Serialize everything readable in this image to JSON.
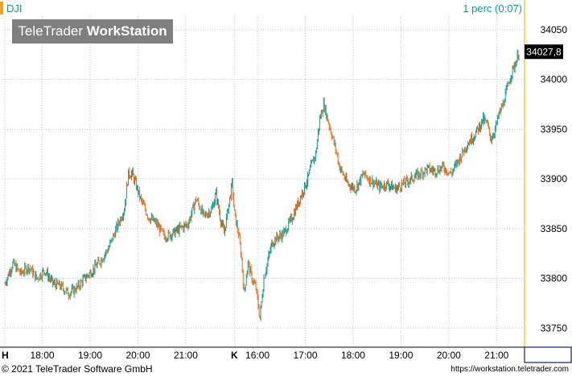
{
  "header": {
    "symbol": "DJI",
    "interval": "1 perc (0:07)"
  },
  "watermark": {
    "brand": "TeleTrader",
    "product": "WorkStation"
  },
  "price_marker": {
    "label": "34027,8"
  },
  "footer": {
    "copyright": "© 2021 TeleTrader Software GmbH",
    "url": "https://workstation.teletrader.com"
  },
  "colors": {
    "up": "#139a8b",
    "down": "#f26a12",
    "grid": "#c8c8c8",
    "axis": "#0f1e7a",
    "marker_bg": "#000000"
  },
  "chart_data": {
    "type": "line",
    "series_style": "candlestick",
    "ylim": [
      33730,
      34062
    ],
    "y_ticks": [
      33750,
      33800,
      33850,
      33900,
      33950,
      34000,
      34050
    ],
    "y_tick_labels": [
      "33750",
      "33800",
      "33850",
      "33900",
      "33950",
      "34000",
      "34050"
    ],
    "x_ticks": [
      {
        "label": "H",
        "t": 0
      },
      {
        "label": "18:00",
        "t": 47
      },
      {
        "label": "19:00",
        "t": 107
      },
      {
        "label": "20:00",
        "t": 167
      },
      {
        "label": "21:00",
        "t": 227
      },
      {
        "label": "K",
        "t": 288
      },
      {
        "label": "16:00",
        "t": 317
      },
      {
        "label": "17:00",
        "t": 377
      },
      {
        "label": "18:00",
        "t": 437
      },
      {
        "label": "19:00",
        "t": 497
      },
      {
        "label": "20:00",
        "t": 557
      },
      {
        "label": "21:00",
        "t": 617
      }
    ],
    "x_range": [
      0,
      648
    ],
    "x": [
      0,
      10,
      20,
      30,
      40,
      50,
      60,
      70,
      80,
      90,
      100,
      110,
      120,
      130,
      140,
      150,
      155,
      160,
      170,
      180,
      190,
      200,
      210,
      220,
      230,
      240,
      250,
      260,
      265,
      270,
      275,
      280,
      285,
      288,
      293,
      297,
      300,
      305,
      310,
      315,
      320,
      325,
      330,
      335,
      340,
      350,
      360,
      370,
      380,
      385,
      390,
      395,
      400,
      405,
      410,
      415,
      420,
      430,
      440,
      450,
      460,
      470,
      480,
      490,
      500,
      510,
      520,
      530,
      540,
      550,
      560,
      570,
      580,
      590,
      600,
      605,
      610,
      615,
      620,
      625,
      630,
      635,
      640,
      645
    ],
    "values": [
      33795,
      33815,
      33805,
      33812,
      33800,
      33808,
      33795,
      33792,
      33785,
      33790,
      33800,
      33808,
      33818,
      33830,
      33850,
      33870,
      33905,
      33905,
      33880,
      33862,
      33855,
      33842,
      33845,
      33850,
      33855,
      33880,
      33862,
      33870,
      33885,
      33862,
      33845,
      33870,
      33895,
      33865,
      33845,
      33820,
      33785,
      33815,
      33800,
      33790,
      33760,
      33800,
      33818,
      33835,
      33840,
      33845,
      33860,
      33880,
      33900,
      33915,
      33925,
      33960,
      33975,
      33960,
      33945,
      33930,
      33912,
      33895,
      33890,
      33905,
      33898,
      33892,
      33895,
      33890,
      33895,
      33900,
      33905,
      33910,
      33908,
      33912,
      33905,
      33920,
      33935,
      33945,
      33960,
      33955,
      33940,
      33950,
      33965,
      33975,
      33990,
      34005,
      34015,
      34027.8
    ]
  }
}
